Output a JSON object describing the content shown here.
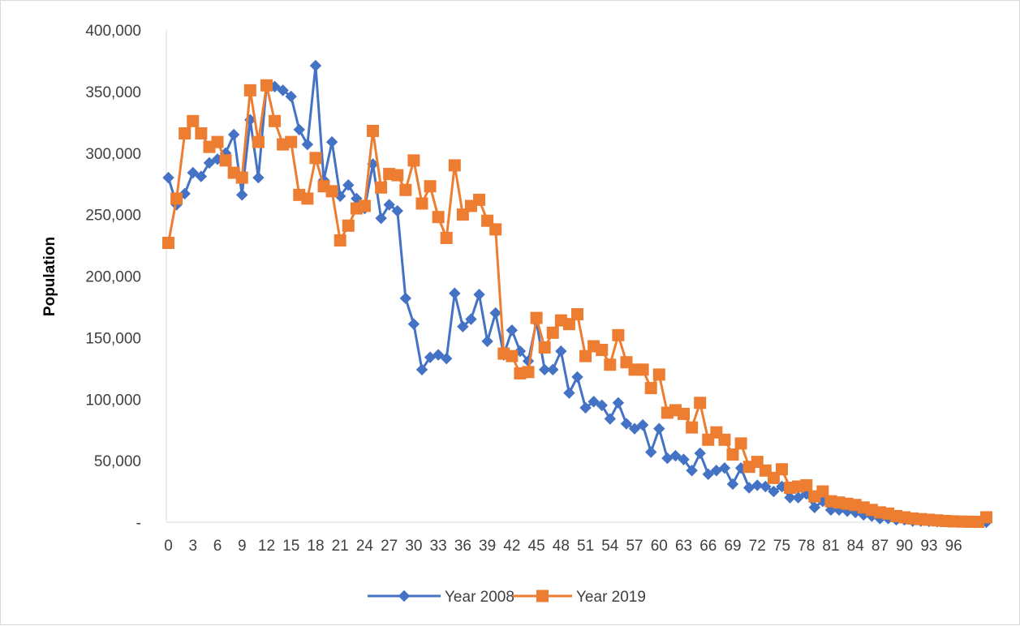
{
  "chart_data": {
    "type": "line",
    "title": "",
    "xlabel": "",
    "ylabel": "Population",
    "ylim": [
      0,
      400000
    ],
    "yticks": [
      0,
      50000,
      100000,
      150000,
      200000,
      250000,
      300000,
      350000,
      400000
    ],
    "ytick_labels": [
      "-",
      "50,000",
      "100,000",
      "150,000",
      "200,000",
      "250,000",
      "300,000",
      "350,000",
      "400,000"
    ],
    "x": [
      0,
      1,
      2,
      3,
      4,
      5,
      6,
      7,
      8,
      9,
      10,
      11,
      12,
      13,
      14,
      15,
      16,
      17,
      18,
      19,
      20,
      21,
      22,
      23,
      24,
      25,
      26,
      27,
      28,
      29,
      30,
      31,
      32,
      33,
      34,
      35,
      36,
      37,
      38,
      39,
      40,
      41,
      42,
      43,
      44,
      45,
      46,
      47,
      48,
      49,
      50,
      51,
      52,
      53,
      54,
      55,
      56,
      57,
      58,
      59,
      60,
      61,
      62,
      63,
      64,
      65,
      66,
      67,
      68,
      69,
      70,
      71,
      72,
      73,
      74,
      75,
      76,
      77,
      78,
      79,
      80,
      81,
      82,
      83,
      84,
      85,
      86,
      87,
      88,
      89,
      90,
      91,
      92,
      93,
      94,
      95,
      96,
      97,
      98,
      99,
      100
    ],
    "xtick_labels": [
      "0",
      "3",
      "6",
      "9",
      "12",
      "15",
      "18",
      "21",
      "24",
      "27",
      "30",
      "33",
      "36",
      "39",
      "42",
      "45",
      "48",
      "51",
      "54",
      "57",
      "60",
      "63",
      "66",
      "69",
      "72",
      "75",
      "78",
      "81",
      "84",
      "87",
      "90",
      "93",
      "96"
    ],
    "xtick_step": 3,
    "grid": false,
    "legend_position": "bottom",
    "series": [
      {
        "name": "Year 2008",
        "color": "#4472c4",
        "marker": "diamond",
        "values": [
          280000,
          258000,
          267000,
          284000,
          281000,
          292000,
          295000,
          300000,
          315000,
          266000,
          327000,
          280000,
          355000,
          354000,
          351000,
          346000,
          319000,
          307000,
          371000,
          278000,
          309000,
          265000,
          274000,
          263000,
          255000,
          291000,
          247000,
          258000,
          253000,
          182000,
          161000,
          124000,
          134000,
          136000,
          133000,
          186000,
          159000,
          165000,
          185000,
          147000,
          170000,
          136000,
          156000,
          139000,
          131000,
          163000,
          124000,
          124000,
          139000,
          105000,
          118000,
          93000,
          98000,
          95000,
          84000,
          97000,
          80000,
          76000,
          79000,
          57000,
          76000,
          52000,
          54000,
          51000,
          42000,
          56000,
          39000,
          42000,
          44000,
          31000,
          44000,
          28000,
          30000,
          29000,
          25000,
          29000,
          20000,
          20000,
          23000,
          12000,
          17000,
          10000,
          10000,
          9000,
          8000,
          6000,
          5000,
          3000,
          3000,
          2000,
          2000,
          1000,
          1000,
          700,
          500,
          400,
          300,
          200,
          100,
          50,
          0
        ]
      },
      {
        "name": "Year 2019",
        "color": "#ed7d31",
        "marker": "square",
        "values": [
          227000,
          263000,
          316000,
          326000,
          316000,
          305000,
          309000,
          294000,
          284000,
          280000,
          351000,
          309000,
          355000,
          326000,
          307000,
          309000,
          266000,
          263000,
          296000,
          273000,
          269000,
          229000,
          241000,
          255000,
          257000,
          318000,
          272000,
          283000,
          282000,
          270000,
          294000,
          259000,
          273000,
          248000,
          231000,
          290000,
          250000,
          257000,
          262000,
          245000,
          238000,
          137000,
          135000,
          121000,
          122000,
          166000,
          142000,
          154000,
          164000,
          161000,
          169000,
          135000,
          143000,
          140000,
          128000,
          152000,
          130000,
          124000,
          124000,
          109000,
          120000,
          89000,
          91000,
          88000,
          77000,
          97000,
          67000,
          73000,
          67000,
          55000,
          64000,
          45000,
          49000,
          42000,
          36000,
          43000,
          28000,
          29000,
          30000,
          21000,
          25000,
          17000,
          16000,
          15000,
          14000,
          12000,
          10000,
          8000,
          7000,
          5000,
          4000,
          3000,
          2500,
          2000,
          1500,
          1000,
          700,
          500,
          400,
          300,
          4000
        ]
      }
    ]
  }
}
